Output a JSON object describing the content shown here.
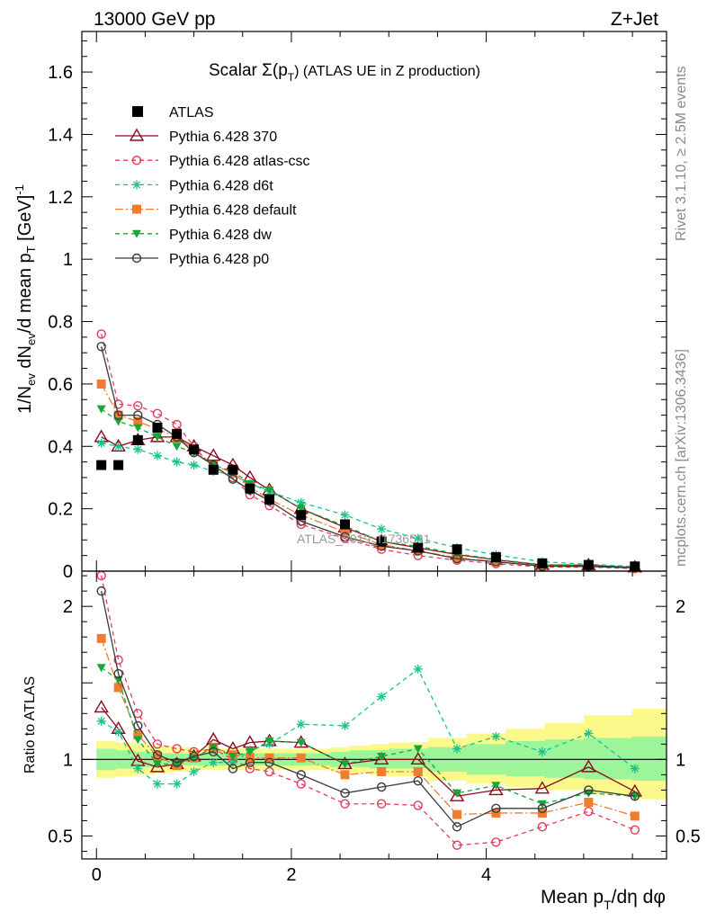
{
  "header": {
    "left": "13000 GeV pp",
    "right": "Z+Jet"
  },
  "side_labels": {
    "rivet": "Rivet 3.1.10, ≥ 2.5M events",
    "mcplots": "mcplots.cern.ch [arXiv:1306.3436]"
  },
  "watermark": "ATLAS_2019_I1736531",
  "chart_data": {
    "type": "line",
    "title": "Scalar Σ(p_T) (ATLAS UE in Z production)",
    "title_main": "Scalar Σ(p",
    "title_sub": "T",
    "title_rest": ") (ATLAS UE in Z production)",
    "xlabel": "Mean p_T/dη dφ",
    "ylabel": "1/N_ev dN_ev/d mean p_T [GeV]^-1",
    "ratio_ylabel": "Ratio to ATLAS",
    "xlim": [
      -0.15,
      5.85
    ],
    "ylim": [
      0,
      1.73
    ],
    "ratio_ylim": [
      0.35,
      2.23
    ],
    "x_ticks": [
      0,
      2,
      4
    ],
    "y_ticks": [
      0,
      0.2,
      0.4,
      0.6,
      0.8,
      1,
      1.2,
      1.4,
      1.6
    ],
    "ratio_ticks": [
      0.5,
      1,
      2
    ],
    "legend_position": "top-left",
    "x": [
      0.05,
      0.225,
      0.425,
      0.625,
      0.825,
      1.0,
      1.2,
      1.4,
      1.575,
      1.775,
      2.1,
      2.55,
      2.925,
      3.3,
      3.7,
      4.1,
      4.575,
      5.05,
      5.525
    ],
    "data": {
      "name": "ATLAS",
      "values": [
        0.34,
        0.34,
        0.42,
        0.46,
        0.44,
        0.39,
        0.325,
        0.325,
        0.265,
        0.23,
        0.18,
        0.15,
        0.095,
        0.075,
        0.07,
        0.045,
        0.025,
        0.02,
        0.015
      ]
    },
    "band_edges": [
      0.0,
      0.2,
      0.4,
      0.6,
      0.8,
      1.0,
      1.2,
      1.4,
      1.6,
      1.8,
      2.0,
      2.2,
      2.4,
      2.6,
      2.8,
      3.0,
      3.4,
      3.8,
      4.2,
      4.6,
      5.0,
      5.5,
      5.85
    ],
    "band_inner": [
      [
        0.93,
        1.07
      ],
      [
        0.94,
        1.06
      ],
      [
        0.95,
        1.05
      ],
      [
        0.96,
        1.04
      ],
      [
        0.96,
        1.04
      ],
      [
        0.96,
        1.04
      ],
      [
        0.96,
        1.04
      ],
      [
        0.96,
        1.04
      ],
      [
        0.96,
        1.04
      ],
      [
        0.96,
        1.04
      ],
      [
        0.96,
        1.04
      ],
      [
        0.96,
        1.04
      ],
      [
        0.95,
        1.05
      ],
      [
        0.95,
        1.06
      ],
      [
        0.94,
        1.06
      ],
      [
        0.94,
        1.07
      ],
      [
        0.92,
        1.08
      ],
      [
        0.9,
        1.1
      ],
      [
        0.89,
        1.12
      ],
      [
        0.88,
        1.13
      ],
      [
        0.87,
        1.14
      ],
      [
        0.86,
        1.15
      ]
    ],
    "band_outer": [
      [
        0.88,
        1.12
      ],
      [
        0.89,
        1.11
      ],
      [
        0.9,
        1.1
      ],
      [
        0.91,
        1.09
      ],
      [
        0.92,
        1.08
      ],
      [
        0.93,
        1.07
      ],
      [
        0.93,
        1.07
      ],
      [
        0.93,
        1.07
      ],
      [
        0.93,
        1.07
      ],
      [
        0.93,
        1.07
      ],
      [
        0.93,
        1.07
      ],
      [
        0.93,
        1.07
      ],
      [
        0.92,
        1.08
      ],
      [
        0.91,
        1.09
      ],
      [
        0.9,
        1.1
      ],
      [
        0.89,
        1.11
      ],
      [
        0.86,
        1.14
      ],
      [
        0.84,
        1.17
      ],
      [
        0.82,
        1.2
      ],
      [
        0.8,
        1.24
      ],
      [
        0.77,
        1.29
      ],
      [
        0.74,
        1.33
      ]
    ],
    "series": [
      {
        "name": "Pythia 6.428 370",
        "color": "#8b0a1e",
        "dash": "",
        "marker": "triangle-open",
        "values": [
          0.43,
          0.4,
          0.42,
          0.43,
          0.43,
          0.4,
          0.37,
          0.34,
          0.3,
          0.26,
          0.2,
          0.14,
          0.095,
          0.075,
          0.053,
          0.036,
          0.02,
          0.019,
          0.012
        ],
        "ratio": [
          1.34,
          1.2,
          0.99,
          0.95,
          0.97,
          1.02,
          1.13,
          1.07,
          1.11,
          1.12,
          1.11,
          0.97,
          1.0,
          1.0,
          0.76,
          0.8,
          0.81,
          0.95,
          0.79
        ]
      },
      {
        "name": "Pythia 6.428 atlas-csc",
        "color": "#e8395a",
        "dash": "5,4",
        "marker": "circle-open",
        "values": [
          0.76,
          0.535,
          0.53,
          0.505,
          0.47,
          0.4,
          0.33,
          0.3,
          0.245,
          0.21,
          0.15,
          0.105,
          0.07,
          0.05,
          0.035,
          0.024,
          0.013,
          0.013,
          0.008
        ],
        "ratio": [
          2.2,
          1.65,
          1.3,
          1.1,
          1.07,
          1.05,
          1.07,
          1.0,
          0.94,
          0.92,
          0.84,
          0.71,
          0.71,
          0.7,
          0.44,
          0.46,
          0.56,
          0.66,
          0.54
        ]
      },
      {
        "name": "Pythia 6.428 d6t",
        "color": "#1bc28c",
        "dash": "5,4",
        "marker": "star",
        "values": [
          0.41,
          0.4,
          0.39,
          0.37,
          0.35,
          0.34,
          0.32,
          0.31,
          0.28,
          0.255,
          0.22,
          0.18,
          0.135,
          0.105,
          0.075,
          0.052,
          0.03,
          0.022,
          0.015
        ],
        "ratio": [
          1.25,
          1.18,
          0.94,
          0.84,
          0.84,
          0.92,
          0.98,
          0.98,
          1.06,
          1.1,
          1.23,
          1.22,
          1.41,
          1.59,
          1.07,
          1.15,
          1.05,
          1.17,
          0.94
        ]
      },
      {
        "name": "Pythia 6.428 default",
        "color": "#f07c30",
        "dash": "9,3,2,3",
        "marker": "square",
        "values": [
          0.6,
          0.5,
          0.48,
          0.455,
          0.43,
          0.39,
          0.34,
          0.315,
          0.27,
          0.23,
          0.18,
          0.125,
          0.085,
          0.065,
          0.043,
          0.03,
          0.017,
          0.015,
          0.01
        ],
        "ratio": [
          1.79,
          1.47,
          1.16,
          1.02,
          0.96,
          1.01,
          1.08,
          1.03,
          1.01,
          1.01,
          1.01,
          0.9,
          0.92,
          0.92,
          0.64,
          0.65,
          0.65,
          0.72,
          0.63
        ]
      },
      {
        "name": "Pythia 6.428 dw",
        "color": "#18a636",
        "dash": "5,4",
        "marker": "triangle-down",
        "values": [
          0.52,
          0.48,
          0.46,
          0.43,
          0.4,
          0.38,
          0.34,
          0.32,
          0.28,
          0.26,
          0.2,
          0.145,
          0.095,
          0.08,
          0.055,
          0.038,
          0.02,
          0.016,
          0.011
        ],
        "ratio": [
          1.6,
          1.52,
          1.13,
          0.97,
          0.97,
          1.01,
          1.08,
          1.02,
          1.05,
          1.12,
          1.11,
          0.97,
          1.02,
          1.07,
          0.78,
          0.83,
          0.71,
          0.78,
          0.76
        ]
      },
      {
        "name": "Pythia 6.428 p0",
        "color": "#3a3a3a",
        "dash": "",
        "marker": "circle-open",
        "values": [
          0.72,
          0.5,
          0.5,
          0.47,
          0.43,
          0.38,
          0.34,
          0.295,
          0.26,
          0.225,
          0.16,
          0.11,
          0.08,
          0.065,
          0.04,
          0.03,
          0.016,
          0.015,
          0.011
        ],
        "ratio": [
          2.1,
          1.56,
          1.22,
          1.03,
          0.98,
          1.02,
          1.05,
          0.94,
          0.98,
          0.98,
          0.9,
          0.78,
          0.82,
          0.86,
          0.56,
          0.68,
          0.68,
          0.8,
          0.76
        ]
      }
    ]
  }
}
